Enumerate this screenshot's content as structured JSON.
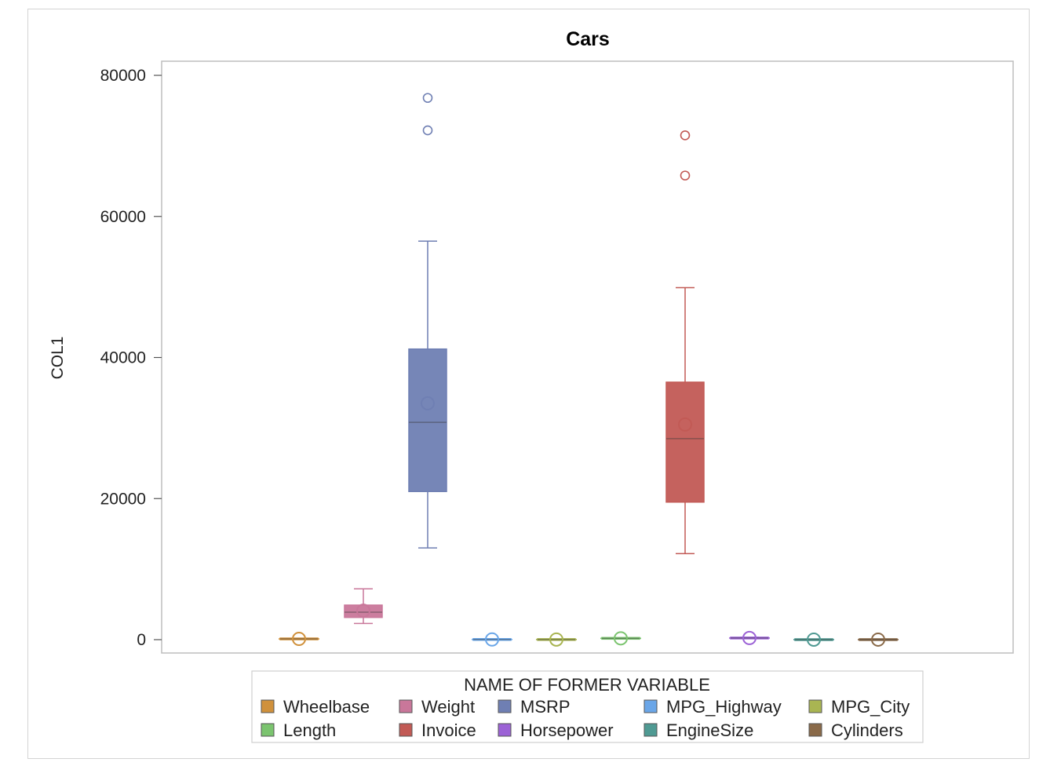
{
  "chart_data": {
    "type": "box",
    "title": "Cars",
    "ylabel": "COL1",
    "xlabel": "",
    "ylim": [
      -2000,
      82000
    ],
    "yticks": [
      0,
      20000,
      40000,
      60000,
      80000
    ],
    "ytick_labels": [
      "0",
      "20000",
      "40000",
      "60000",
      "80000"
    ],
    "legend_title": "NAME OF FORMER VARIABLE",
    "legend_position": "bottom",
    "series": [
      {
        "name": "Wheelbase",
        "color": "#d0913c",
        "min": 101,
        "q1": 105,
        "median": 108,
        "q3": 112,
        "max": 121,
        "mean": 108,
        "outliers": []
      },
      {
        "name": "Weight",
        "color": "#c9779a",
        "min": 2300,
        "q1": 3150,
        "median": 3900,
        "q3": 4900,
        "max": 7200,
        "mean": 4100,
        "outliers": []
      },
      {
        "name": "MSRP",
        "color": "#6f7fb3",
        "min": 13000,
        "q1": 21000,
        "median": 30800,
        "q3": 41200,
        "max": 56500,
        "mean": 33500,
        "outliers": [
          72200,
          76800
        ]
      },
      {
        "name": "MPG_Highway",
        "color": "#6aa6e8",
        "min": 20,
        "q1": 24,
        "median": 27,
        "q3": 29,
        "max": 36,
        "mean": 27,
        "outliers": []
      },
      {
        "name": "MPG_City",
        "color": "#a9b552",
        "min": 14,
        "q1": 17,
        "median": 19,
        "q3": 21,
        "max": 28,
        "mean": 19,
        "outliers": []
      },
      {
        "name": "Length",
        "color": "#7bc46f",
        "min": 170,
        "q1": 180,
        "median": 187,
        "q3": 193,
        "max": 205,
        "mean": 187,
        "outliers": []
      },
      {
        "name": "Invoice",
        "color": "#c25a55",
        "min": 12200,
        "q1": 19500,
        "median": 28500,
        "q3": 36500,
        "max": 49900,
        "mean": 30500,
        "outliers": [
          65800,
          71500
        ]
      },
      {
        "name": "Horsepower",
        "color": "#9c62d6",
        "min": 150,
        "q1": 200,
        "median": 230,
        "q3": 280,
        "max": 340,
        "mean": 235,
        "outliers": []
      },
      {
        "name": "EngineSize",
        "color": "#4f9a93",
        "min": 2,
        "q1": 2.8,
        "median": 3.2,
        "q3": 4,
        "max": 5.5,
        "mean": 3.3,
        "outliers": []
      },
      {
        "name": "Cylinders",
        "color": "#8a6a49",
        "min": 4,
        "q1": 6,
        "median": 6,
        "q3": 8,
        "max": 8,
        "mean": 6,
        "outliers": []
      }
    ]
  }
}
